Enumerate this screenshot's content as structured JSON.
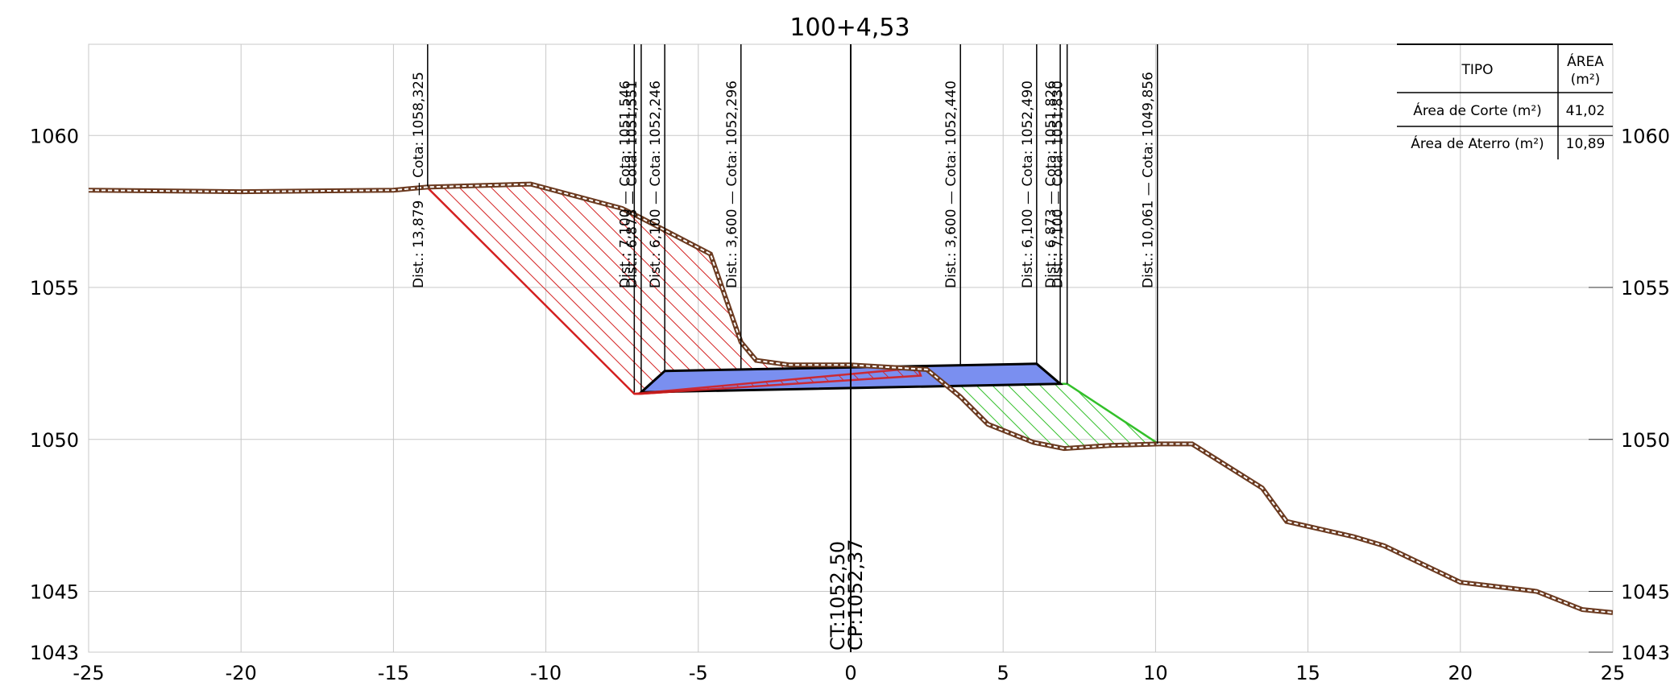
{
  "chart_data": {
    "type": "area",
    "title": "100+4,53",
    "xlabel": "",
    "ylabel": "",
    "xlim": [
      -25,
      25
    ],
    "ylim": [
      1043,
      1063
    ],
    "x_ticks": [
      "-25",
      "-20",
      "-15",
      "-10",
      "-5",
      "0",
      "5",
      "10",
      "15",
      "20",
      "25"
    ],
    "y_ticks": [
      "1043",
      "1045",
      "1050",
      "1055",
      "1060"
    ],
    "grid": true,
    "terrain": [
      [
        -25,
        1058.2
      ],
      [
        -20,
        1058.15
      ],
      [
        -15,
        1058.2
      ],
      [
        -13.9,
        1058.3
      ],
      [
        -10.5,
        1058.4
      ],
      [
        -7.5,
        1057.6
      ],
      [
        -6.9,
        1057.3
      ],
      [
        -4.6,
        1056.1
      ],
      [
        -3.6,
        1053.2
      ],
      [
        -3.1,
        1052.6
      ],
      [
        -2.0,
        1052.45
      ],
      [
        0,
        1052.45
      ],
      [
        2.5,
        1052.3
      ],
      [
        3.6,
        1051.4
      ],
      [
        4.5,
        1050.5
      ],
      [
        6.0,
        1049.9
      ],
      [
        7.0,
        1049.7
      ],
      [
        8.5,
        1049.8
      ],
      [
        10.1,
        1049.85
      ],
      [
        11.2,
        1049.85
      ],
      [
        13.5,
        1048.4
      ],
      [
        14.3,
        1047.3
      ],
      [
        16.5,
        1046.8
      ],
      [
        17.5,
        1046.5
      ],
      [
        20,
        1045.3
      ],
      [
        22.5,
        1045.0
      ],
      [
        24,
        1044.4
      ],
      [
        25,
        1044.3
      ]
    ],
    "cut_area_polygon": [
      [
        -13.9,
        1058.3
      ],
      [
        -10.5,
        1058.4
      ],
      [
        -7.5,
        1057.6
      ],
      [
        -6.9,
        1057.3
      ],
      [
        -4.6,
        1056.1
      ],
      [
        -3.6,
        1053.2
      ],
      [
        -3.1,
        1052.6
      ],
      [
        -2.0,
        1052.45
      ],
      [
        2.2,
        1052.35
      ],
      [
        2.3,
        1052.1
      ],
      [
        -6.9,
        1051.5
      ],
      [
        -7.1,
        1051.5
      ]
    ],
    "fill_area_polygon": [
      [
        2.5,
        1052.3
      ],
      [
        3.6,
        1051.4
      ],
      [
        4.5,
        1050.5
      ],
      [
        6.0,
        1049.9
      ],
      [
        7.0,
        1049.7
      ],
      [
        8.5,
        1049.8
      ],
      [
        10.1,
        1049.85
      ],
      [
        7.1,
        1051.83
      ],
      [
        2.3,
        1051.85
      ]
    ],
    "pavement_polygon": [
      [
        -6.1,
        1052.25
      ],
      [
        6.1,
        1052.49
      ],
      [
        6.873,
        1051.83
      ],
      [
        -6.873,
        1051.55
      ]
    ],
    "offsets": [
      {
        "dist": "13,879",
        "cota": "1058,325",
        "x": -13.879,
        "base": 1058.325
      },
      {
        "dist": "7,100",
        "cota": "1051,546",
        "x": -7.1,
        "base": 1051.546
      },
      {
        "dist": "6,873",
        "cota": "1051,551",
        "x": -6.873,
        "base": 1051.551
      },
      {
        "dist": "6,100",
        "cota": "1052,246",
        "x": -6.1,
        "base": 1052.246
      },
      {
        "dist": "3,600",
        "cota": "1052,296",
        "x": -3.6,
        "base": 1052.296
      },
      {
        "dist": "3,600",
        "cota": "1052,440",
        "x": 3.6,
        "base": 1052.44
      },
      {
        "dist": "6,100",
        "cota": "1052,490",
        "x": 6.1,
        "base": 1052.49
      },
      {
        "dist": "6,873",
        "cota": "1051,826",
        "x": 6.873,
        "base": 1051.826
      },
      {
        "dist": "7,100",
        "cota": "1051,830",
        "x": 7.1,
        "base": 1051.83
      },
      {
        "dist": "10,061",
        "cota": "1049,856",
        "x": 10.061,
        "base": 1049.856
      }
    ],
    "dist_prefix": "Dist.:",
    "cota_prefix": "Cota:",
    "center_labels": [
      "CT:1052,50",
      "CP:1052,37"
    ],
    "area_table": {
      "headers": [
        "TIPO",
        "ÁREA",
        "(m²)"
      ],
      "rows": [
        {
          "tipo": "Área de Corte (m²)",
          "area": "41,02"
        },
        {
          "tipo": "Área de Aterro (m²)",
          "area": "10,89"
        }
      ]
    },
    "colors": {
      "cut": "#d42020",
      "fill": "#33c02a",
      "pavement": "#7a8ff0",
      "terrain": "#6b3a20",
      "grid": "#c8c8c8"
    }
  }
}
